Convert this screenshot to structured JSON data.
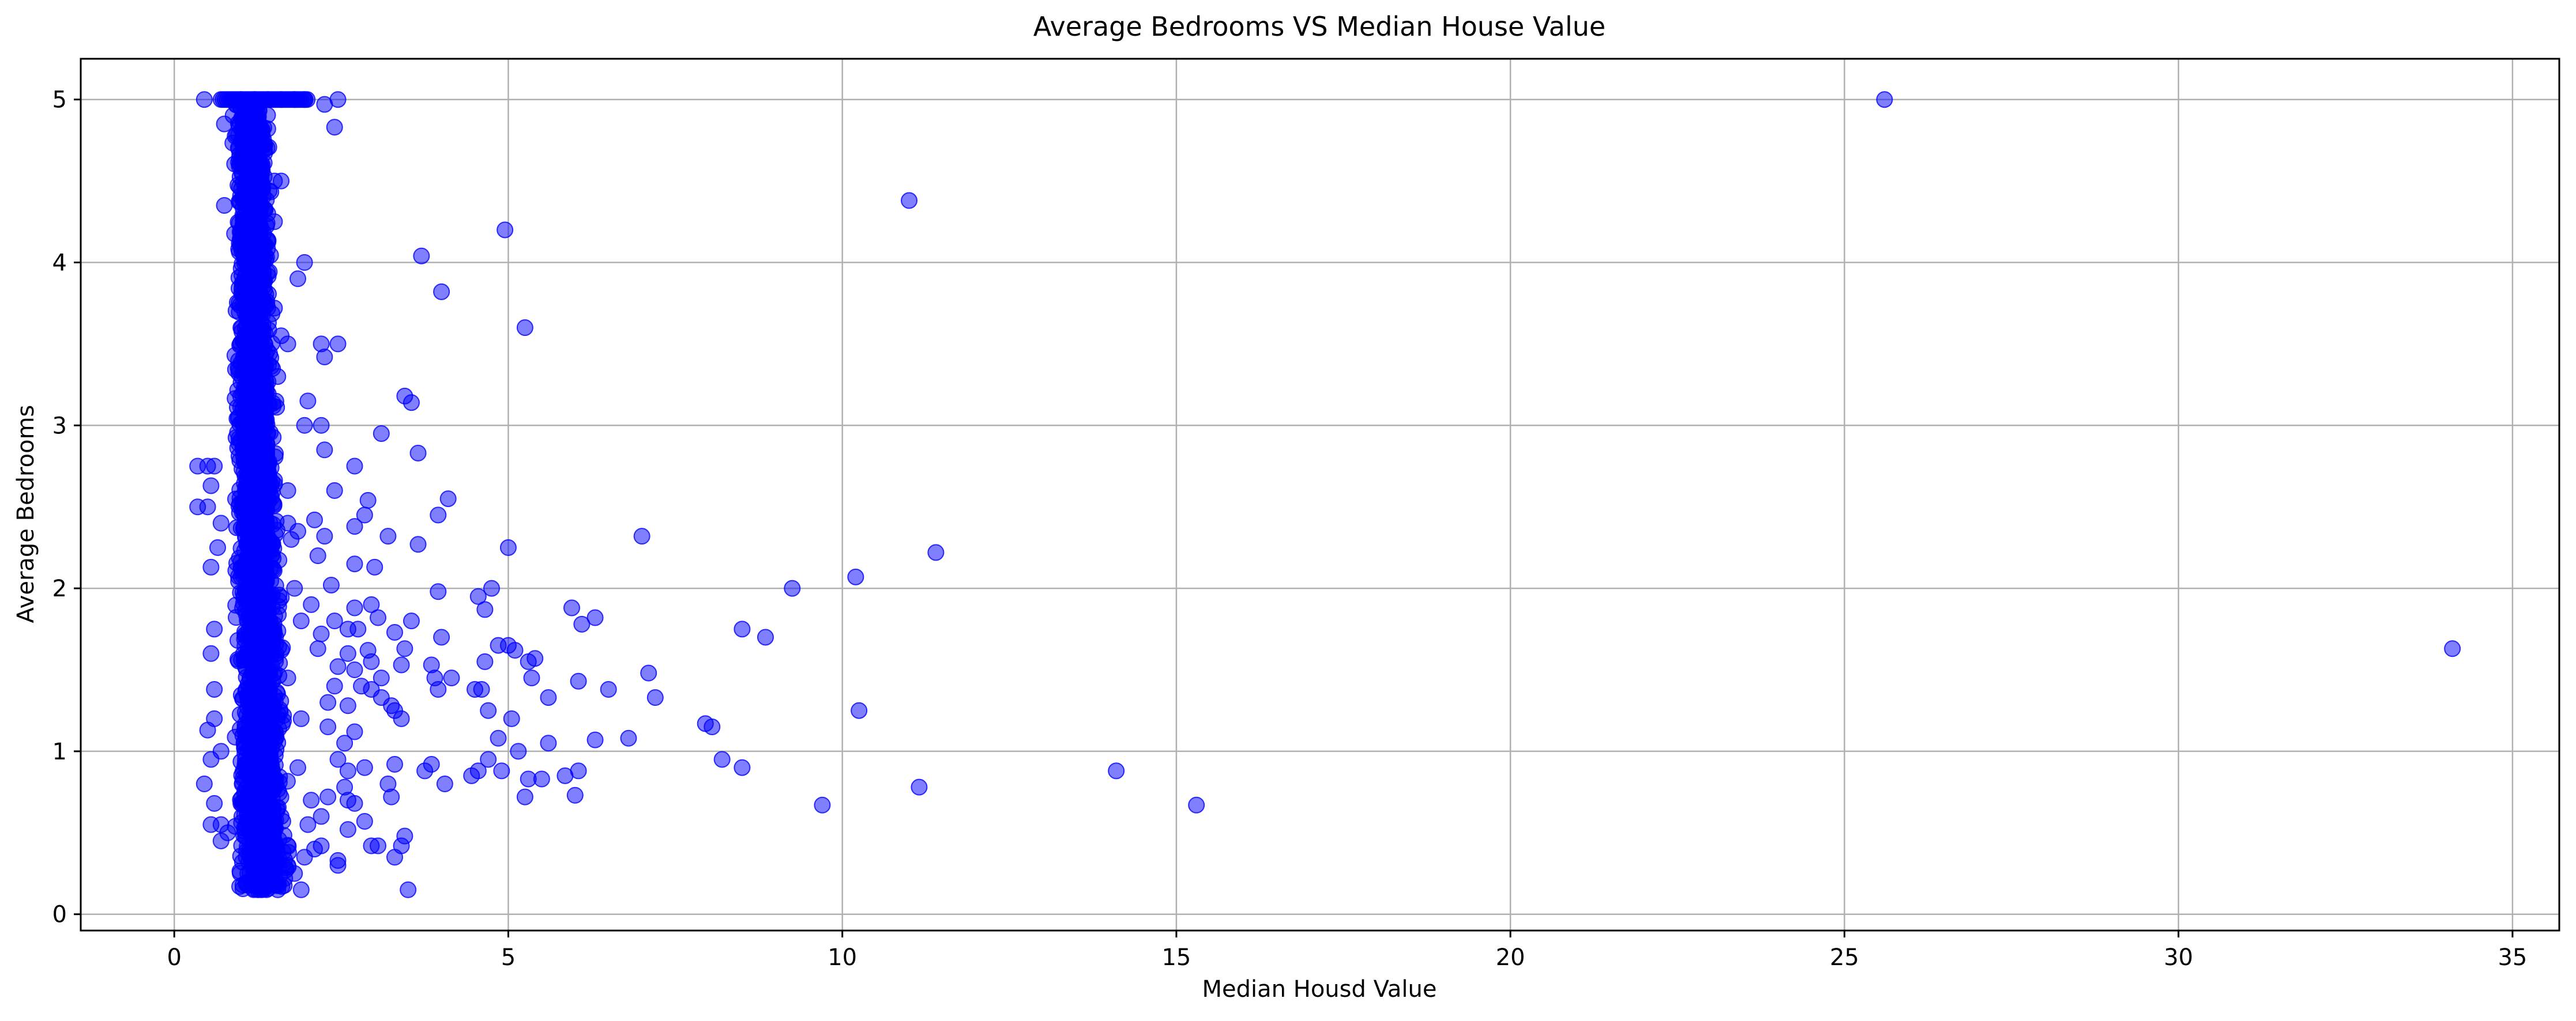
{
  "chart_data": {
    "type": "scatter",
    "title": "Average Bedrooms VS Median House Value",
    "xlabel": "Median Housd Value",
    "ylabel": "Average Bedrooms",
    "xlim": [
      -1.4,
      35.7
    ],
    "ylim": [
      -0.1,
      5.25
    ],
    "xticks": [
      0,
      5,
      10,
      15,
      20,
      25,
      30,
      35
    ],
    "yticks": [
      0,
      1,
      2,
      3,
      4,
      5
    ],
    "grid": true,
    "legend": "none",
    "marker_color": "#0000ff",
    "marker_opacity": 0.5,
    "series": [
      {
        "outliers": [
          [
            25.6,
            5.0
          ],
          [
            11.0,
            4.38
          ],
          [
            34.1,
            1.63
          ],
          [
            11.4,
            2.22
          ],
          [
            10.2,
            2.07
          ],
          [
            9.25,
            2.0
          ],
          [
            10.25,
            1.25
          ],
          [
            11.15,
            0.78
          ],
          [
            9.7,
            0.67
          ],
          [
            14.1,
            0.88
          ],
          [
            15.3,
            0.67
          ],
          [
            8.5,
            1.75
          ],
          [
            8.85,
            1.7
          ],
          [
            8.2,
            0.95
          ],
          [
            8.5,
            0.9
          ],
          [
            7.95,
            1.17
          ],
          [
            8.05,
            1.15
          ],
          [
            7.0,
            2.32
          ],
          [
            7.1,
            1.48
          ],
          [
            7.2,
            1.33
          ],
          [
            6.8,
            1.08
          ],
          [
            6.5,
            1.38
          ],
          [
            6.3,
            1.82
          ],
          [
            6.1,
            1.78
          ],
          [
            5.95,
            1.88
          ],
          [
            6.05,
            1.43
          ],
          [
            6.05,
            0.88
          ],
          [
            6.0,
            0.73
          ],
          [
            5.85,
            0.85
          ],
          [
            6.3,
            1.07
          ],
          [
            5.6,
            1.05
          ],
          [
            5.5,
            0.83
          ],
          [
            5.3,
            0.83
          ],
          [
            5.25,
            0.72
          ],
          [
            5.15,
            1.0
          ],
          [
            5.3,
            1.55
          ],
          [
            5.35,
            1.45
          ],
          [
            5.4,
            1.57
          ],
          [
            5.6,
            1.33
          ],
          [
            5.0,
            1.65
          ],
          [
            5.1,
            1.62
          ],
          [
            5.05,
            1.2
          ],
          [
            4.95,
            4.2
          ],
          [
            5.25,
            3.6
          ],
          [
            5.0,
            2.25
          ],
          [
            4.75,
            2.0
          ],
          [
            4.55,
            1.95
          ],
          [
            4.65,
            1.87
          ],
          [
            4.85,
            1.65
          ],
          [
            4.65,
            1.55
          ],
          [
            4.5,
            1.38
          ],
          [
            4.6,
            1.38
          ],
          [
            4.7,
            1.25
          ],
          [
            4.85,
            1.08
          ],
          [
            4.7,
            0.95
          ],
          [
            4.55,
            0.88
          ],
          [
            4.45,
            0.85
          ],
          [
            4.9,
            0.88
          ],
          [
            4.0,
            3.82
          ],
          [
            3.7,
            4.04
          ],
          [
            3.45,
            3.18
          ],
          [
            3.55,
            3.14
          ],
          [
            3.65,
            2.83
          ],
          [
            4.1,
            2.55
          ],
          [
            3.95,
            2.45
          ],
          [
            3.65,
            2.27
          ],
          [
            3.95,
            1.98
          ],
          [
            4.0,
            1.7
          ],
          [
            3.55,
            1.8
          ],
          [
            3.45,
            1.63
          ],
          [
            3.3,
            1.73
          ],
          [
            3.85,
            1.53
          ],
          [
            3.9,
            1.45
          ],
          [
            3.95,
            1.38
          ],
          [
            4.15,
            1.45
          ],
          [
            3.4,
            1.53
          ],
          [
            3.25,
            1.28
          ],
          [
            3.4,
            1.2
          ],
          [
            3.3,
            1.25
          ],
          [
            3.85,
            0.92
          ],
          [
            3.75,
            0.88
          ],
          [
            4.05,
            0.8
          ],
          [
            3.3,
            0.92
          ],
          [
            3.2,
            0.8
          ],
          [
            3.25,
            0.72
          ],
          [
            3.3,
            0.35
          ],
          [
            3.4,
            0.42
          ],
          [
            3.45,
            0.48
          ],
          [
            3.5,
            0.15
          ],
          [
            3.1,
            2.95
          ],
          [
            3.2,
            2.32
          ],
          [
            2.9,
            2.54
          ],
          [
            2.85,
            2.45
          ],
          [
            2.7,
            2.38
          ],
          [
            2.7,
            2.15
          ],
          [
            3.0,
            2.13
          ],
          [
            2.7,
            2.75
          ],
          [
            2.4,
            2.6
          ],
          [
            2.25,
            2.85
          ],
          [
            2.2,
            3.0
          ],
          [
            2.25,
            3.42
          ],
          [
            2.2,
            3.5
          ],
          [
            2.45,
            3.5
          ],
          [
            2.4,
            4.83
          ],
          [
            2.45,
            5.0
          ],
          [
            2.25,
            4.97
          ],
          [
            2.0,
            3.15
          ],
          [
            2.25,
            2.32
          ],
          [
            2.15,
            2.2
          ],
          [
            2.1,
            2.42
          ],
          [
            2.35,
            2.02
          ],
          [
            2.05,
            1.9
          ],
          [
            2.6,
            1.75
          ],
          [
            2.95,
            1.9
          ],
          [
            2.75,
            1.75
          ],
          [
            2.7,
            1.88
          ],
          [
            3.05,
            1.82
          ],
          [
            2.9,
            1.62
          ],
          [
            2.95,
            1.55
          ],
          [
            2.6,
            1.6
          ],
          [
            2.7,
            1.5
          ],
          [
            2.45,
            1.52
          ],
          [
            2.8,
            1.4
          ],
          [
            2.95,
            1.38
          ],
          [
            3.1,
            1.45
          ],
          [
            3.1,
            1.33
          ],
          [
            2.6,
            1.28
          ],
          [
            2.7,
            1.12
          ],
          [
            2.55,
            1.05
          ],
          [
            2.45,
            0.95
          ],
          [
            2.6,
            0.88
          ],
          [
            2.85,
            0.9
          ],
          [
            2.55,
            0.78
          ],
          [
            2.6,
            0.7
          ],
          [
            2.7,
            0.68
          ],
          [
            2.85,
            0.57
          ],
          [
            2.6,
            0.52
          ],
          [
            2.95,
            0.42
          ],
          [
            3.05,
            0.42
          ],
          [
            2.45,
            0.3
          ],
          [
            2.45,
            0.33
          ],
          [
            1.9,
            0.15
          ],
          [
            1.95,
            4.0
          ],
          [
            1.85,
            3.9
          ],
          [
            1.95,
            3.0
          ],
          [
            1.85,
            2.35
          ],
          [
            1.55,
            0.15
          ],
          [
            1.25,
            0.15
          ],
          [
            1.4,
            0.2
          ],
          [
            1.45,
            0.22
          ],
          [
            1.8,
            0.25
          ],
          [
            1.95,
            0.35
          ],
          [
            2.1,
            0.4
          ],
          [
            2.2,
            0.42
          ],
          [
            1.7,
            0.3
          ],
          [
            2.0,
            0.55
          ],
          [
            2.2,
            0.6
          ],
          [
            2.3,
            0.72
          ],
          [
            2.05,
            0.7
          ],
          [
            2.3,
            1.15
          ],
          [
            2.3,
            1.3
          ],
          [
            2.4,
            1.4
          ],
          [
            2.15,
            1.63
          ],
          [
            2.4,
            1.8
          ],
          [
            2.2,
            1.72
          ],
          [
            0.45,
            5.0
          ],
          [
            0.75,
            4.35
          ],
          [
            0.75,
            4.85
          ],
          [
            0.35,
            2.75
          ],
          [
            0.5,
            2.75
          ],
          [
            0.6,
            2.75
          ],
          [
            0.35,
            2.5
          ],
          [
            0.55,
            2.63
          ],
          [
            0.5,
            2.5
          ],
          [
            0.65,
            2.25
          ],
          [
            0.55,
            2.13
          ],
          [
            0.7,
            2.4
          ],
          [
            0.6,
            1.75
          ],
          [
            0.55,
            1.6
          ],
          [
            0.6,
            1.38
          ],
          [
            0.6,
            1.2
          ],
          [
            0.5,
            1.13
          ],
          [
            0.7,
            1.0
          ],
          [
            0.55,
            0.95
          ],
          [
            0.45,
            0.8
          ],
          [
            0.6,
            0.68
          ],
          [
            0.55,
            0.55
          ],
          [
            0.7,
            0.55
          ],
          [
            0.7,
            0.45
          ],
          [
            0.8,
            0.5
          ]
        ],
        "dense_cluster": {
          "x_range": [
            0.7,
            2.0
          ],
          "x_center": 1.1,
          "y_range": [
            0.15,
            5.0
          ],
          "description_points": [
            [
              1.0,
              5.0
            ],
            [
              1.2,
              5.0
            ],
            [
              1.4,
              5.0
            ],
            [
              1.6,
              5.0
            ],
            [
              1.8,
              5.0
            ],
            [
              1.95,
              5.0
            ],
            [
              1.25,
              4.9
            ],
            [
              1.4,
              4.82
            ],
            [
              1.5,
              4.5
            ],
            [
              1.6,
              4.5
            ],
            [
              1.4,
              4.3
            ],
            [
              1.5,
              4.25
            ],
            [
              1.5,
              3.72
            ],
            [
              1.6,
              3.55
            ],
            [
              1.7,
              3.5
            ],
            [
              1.55,
              3.3
            ],
            [
              1.7,
              2.6
            ],
            [
              1.7,
              2.4
            ],
            [
              1.75,
              2.3
            ],
            [
              1.8,
              2.0
            ],
            [
              1.9,
              1.8
            ],
            [
              1.7,
              1.45
            ],
            [
              1.9,
              1.2
            ],
            [
              1.85,
              0.9
            ],
            [
              1.6,
              0.6
            ],
            [
              1.5,
              0.45
            ],
            [
              1.3,
              0.35
            ],
            [
              1.1,
              0.25
            ]
          ]
        }
      }
    ]
  }
}
